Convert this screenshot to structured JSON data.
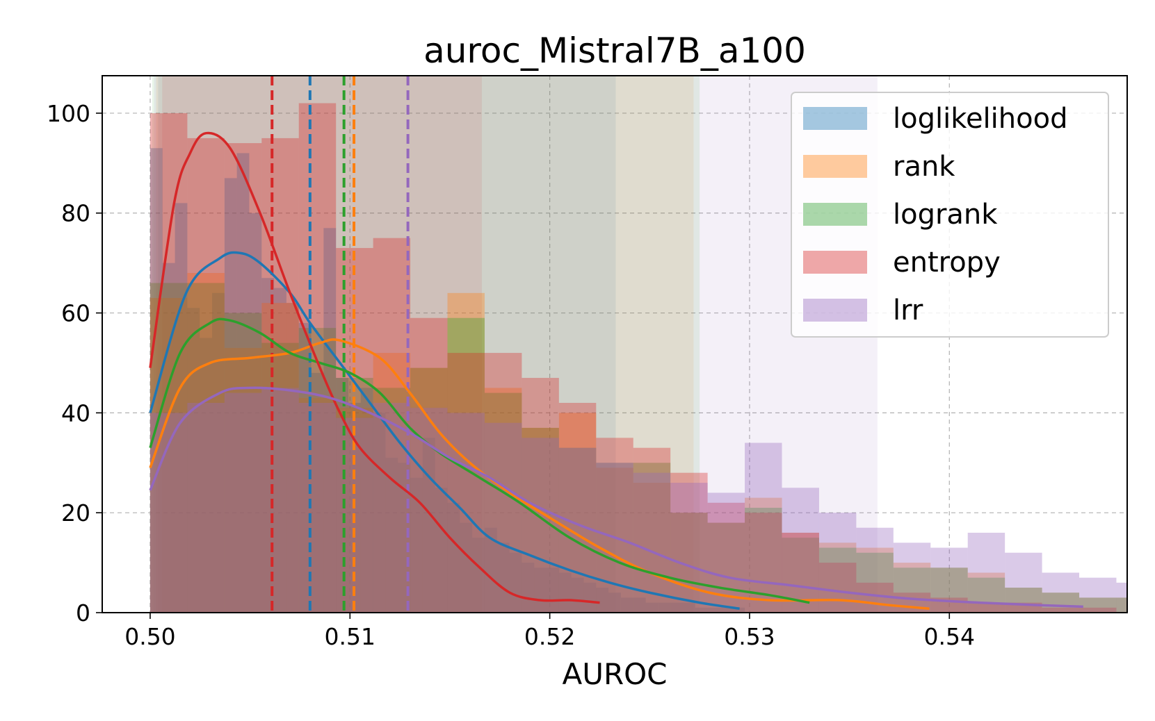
{
  "chart_data": {
    "type": "histogram",
    "title": "auroc_Mistral7B_a100",
    "xlabel": "AUROC",
    "ylabel": "",
    "xlim": [
      0.4976,
      0.5489
    ],
    "ylim": [
      0,
      107.5
    ],
    "xticks": [
      0.5,
      0.51,
      0.52,
      0.53,
      0.54
    ],
    "xtick_labels": [
      "0.50",
      "0.51",
      "0.52",
      "0.53",
      "0.54"
    ],
    "yticks": [
      0,
      20,
      40,
      60,
      80,
      100
    ],
    "ytick_labels": [
      "0",
      "20",
      "40",
      "60",
      "80",
      "100"
    ],
    "grid": true,
    "legend_position": "top-right",
    "series": [
      {
        "name": "loglikelihood",
        "color": "#1f77b4",
        "mean": 0.508,
        "band": [
          0.5004,
          0.5233
        ],
        "bin_start": 0.5,
        "bin_width": 0.00062,
        "counts": [
          93,
          70,
          82,
          61,
          55,
          64,
          87,
          92,
          80,
          67,
          65,
          62,
          58,
          48,
          77,
          47,
          42,
          45,
          40,
          31,
          30,
          27,
          35,
          25,
          22,
          18,
          15,
          17,
          14,
          12,
          10,
          9,
          9,
          8,
          7,
          6,
          5,
          4,
          3,
          3,
          2,
          2,
          2,
          2,
          1,
          1,
          1,
          1
        ],
        "kde_x": [
          0.5,
          0.5018,
          0.5035,
          0.5045,
          0.5055,
          0.507,
          0.508,
          0.5095,
          0.511,
          0.5125,
          0.514,
          0.5155,
          0.517,
          0.519,
          0.521,
          0.523,
          0.525,
          0.5275,
          0.5295
        ],
        "kde_y": [
          40,
          64,
          71,
          72,
          70,
          64,
          58,
          50,
          42,
          34,
          27,
          21,
          15,
          11.5,
          8.5,
          6,
          4,
          2,
          0.8
        ]
      },
      {
        "name": "rank",
        "color": "#ff7f0e",
        "mean": 0.5102,
        "band": [
          0.5003,
          0.5272
        ],
        "bin_start": 0.5,
        "bin_width": 0.00186,
        "counts": [
          63,
          68,
          53,
          62,
          43,
          41,
          52,
          49,
          64,
          45,
          37,
          40,
          29,
          26,
          20,
          18,
          23,
          16,
          14,
          13,
          10,
          9,
          8,
          5,
          4,
          3,
          3,
          2,
          2,
          2,
          1,
          1,
          1,
          1,
          1,
          1,
          1,
          1,
          1,
          1
        ],
        "kde_x": [
          0.5,
          0.5015,
          0.503,
          0.505,
          0.507,
          0.5085,
          0.5095,
          0.5115,
          0.513,
          0.5145,
          0.516,
          0.518,
          0.52,
          0.5225,
          0.525,
          0.528,
          0.531,
          0.5345,
          0.537,
          0.539
        ],
        "kde_y": [
          29,
          45,
          50,
          51,
          52,
          54,
          54.5,
          51,
          44,
          36,
          30,
          24,
          19,
          13,
          8,
          4,
          2.5,
          2.5,
          1.5,
          0.8
        ]
      },
      {
        "name": "logrank",
        "color": "#2ca02c",
        "mean": 0.5097,
        "band": [
          0.5001,
          0.5275
        ],
        "bin_start": 0.5,
        "bin_width": 0.00186,
        "counts": [
          66,
          66,
          60,
          54,
          57,
          47,
          45,
          49,
          59,
          44,
          37,
          33,
          30,
          30,
          20,
          18,
          21,
          15,
          13,
          12,
          9,
          9,
          7,
          5,
          4,
          3,
          3,
          2,
          2,
          2,
          1,
          1,
          1,
          1,
          1,
          1
        ],
        "kde_x": [
          0.5,
          0.5015,
          0.503,
          0.504,
          0.5055,
          0.507,
          0.5085,
          0.51,
          0.5115,
          0.513,
          0.5145,
          0.5165,
          0.5185,
          0.521,
          0.5235,
          0.526,
          0.5285,
          0.531,
          0.533
        ],
        "kde_y": [
          33,
          52,
          58,
          58.5,
          56,
          52,
          50,
          48,
          44,
          37,
          32,
          27,
          22,
          15,
          10,
          7,
          5,
          3.5,
          2
        ]
      },
      {
        "name": "entropy",
        "color": "#d62728",
        "mean": 0.5061,
        "band": [
          0.5006,
          0.5166
        ],
        "bin_start": 0.5,
        "bin_width": 0.00186,
        "counts": [
          100,
          95,
          94,
          95,
          102,
          73,
          75,
          59,
          52,
          52,
          47,
          42,
          35,
          33,
          28,
          22,
          20,
          16,
          10,
          6,
          4,
          3,
          2,
          2,
          1,
          1
        ],
        "kde_x": [
          0.5,
          0.5012,
          0.502,
          0.5028,
          0.504,
          0.5055,
          0.507,
          0.5085,
          0.5095,
          0.5105,
          0.512,
          0.5135,
          0.515,
          0.5165,
          0.518,
          0.5195,
          0.521,
          0.5225
        ],
        "kde_y": [
          49,
          82,
          92,
          96,
          93,
          80,
          64,
          49,
          40,
          33,
          27,
          22,
          15,
          9,
          4,
          2.5,
          2.5,
          2
        ]
      },
      {
        "name": "lrr",
        "color": "#9467bd",
        "mean": 0.5129,
        "band": [
          0.5002,
          0.5364
        ],
        "bin_start": 0.5,
        "bin_width": 0.00186,
        "counts": [
          40,
          42,
          44,
          45,
          42,
          39,
          42,
          41,
          40,
          38,
          35,
          33,
          30,
          28,
          26,
          24,
          34,
          25,
          20,
          17,
          14,
          13,
          16,
          12,
          8,
          7,
          6,
          5,
          4,
          3,
          4,
          3,
          2,
          2,
          1,
          1,
          1,
          1,
          1,
          1,
          1,
          1,
          1,
          2,
          1,
          2
        ],
        "kde_x": [
          0.5,
          0.5015,
          0.5035,
          0.505,
          0.507,
          0.509,
          0.511,
          0.513,
          0.515,
          0.517,
          0.519,
          0.5215,
          0.524,
          0.5265,
          0.529,
          0.532,
          0.535,
          0.538,
          0.5415,
          0.5445,
          0.5467
        ],
        "kde_y": [
          24.5,
          38,
          44,
          45,
          44.5,
          43,
          40,
          36,
          31,
          27,
          22,
          17.5,
          14,
          10,
          7,
          5.5,
          4,
          2.8,
          2,
          1.5,
          1.2
        ]
      }
    ]
  }
}
